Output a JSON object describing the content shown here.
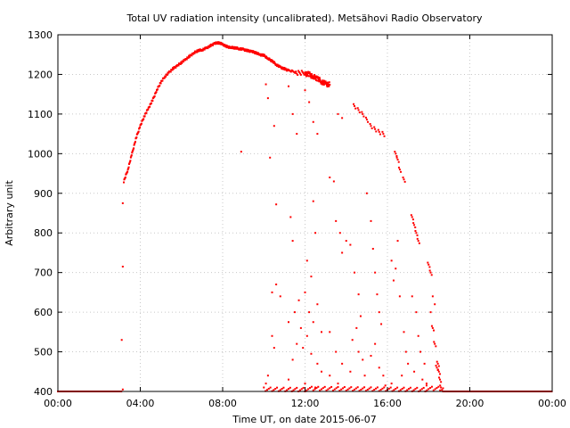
{
  "chart_data": {
    "type": "scatter",
    "title": "Total UV radiation intensity (uncalibrated). Metsähovi Radio Observatory",
    "xlabel": "Time UT, on date 2015-06-07",
    "ylabel": "Arbitrary unit",
    "xlim": [
      0,
      24
    ],
    "ylim": [
      400,
      1300
    ],
    "x_ticks": [
      {
        "value": 0,
        "label": "00:00"
      },
      {
        "value": 4,
        "label": "04:00"
      },
      {
        "value": 8,
        "label": "08:00"
      },
      {
        "value": 12,
        "label": "12:00"
      },
      {
        "value": 16,
        "label": "16:00"
      },
      {
        "value": 20,
        "label": "20:00"
      },
      {
        "value": 24,
        "label": "00:00"
      }
    ],
    "y_ticks": [
      400,
      500,
      600,
      700,
      800,
      900,
      1000,
      1100,
      1200,
      1300
    ],
    "grid": true,
    "series_color": "#ff0000",
    "series": [
      {
        "name": "",
        "main_curve": [
          [
            3.2,
            930
          ],
          [
            3.4,
            960
          ],
          [
            3.6,
            1000
          ],
          [
            3.8,
            1040
          ],
          [
            4.0,
            1070
          ],
          [
            4.2,
            1095
          ],
          [
            4.4,
            1115
          ],
          [
            4.6,
            1135
          ],
          [
            4.8,
            1160
          ],
          [
            5.0,
            1180
          ],
          [
            5.2,
            1195
          ],
          [
            5.4,
            1205
          ],
          [
            5.6,
            1215
          ],
          [
            5.8,
            1222
          ],
          [
            6.0,
            1230
          ],
          [
            6.2,
            1238
          ],
          [
            6.4,
            1246
          ],
          [
            6.6,
            1254
          ],
          [
            6.8,
            1260
          ],
          [
            7.0,
            1262
          ],
          [
            7.2,
            1266
          ],
          [
            7.4,
            1272
          ],
          [
            7.6,
            1278
          ],
          [
            7.8,
            1280
          ],
          [
            8.0,
            1276
          ],
          [
            8.2,
            1270
          ],
          [
            8.4,
            1268
          ],
          [
            8.6,
            1267
          ],
          [
            8.8,
            1265
          ],
          [
            9.0,
            1263
          ],
          [
            9.2,
            1260
          ],
          [
            9.4,
            1258
          ],
          [
            9.6,
            1255
          ],
          [
            9.8,
            1250
          ],
          [
            10.0,
            1248
          ],
          [
            10.2,
            1240
          ],
          [
            10.4,
            1234
          ],
          [
            10.6,
            1225
          ],
          [
            10.8,
            1218
          ],
          [
            11.0,
            1214
          ],
          [
            11.2,
            1210
          ],
          [
            11.6,
            1205
          ],
          [
            12.0,
            1202
          ],
          [
            12.2,
            1200
          ],
          [
            12.4,
            1194
          ],
          [
            12.6,
            1190
          ],
          [
            12.8,
            1182
          ],
          [
            13.0,
            1176
          ],
          [
            13.2,
            1174
          ]
        ],
        "late_clusters": [
          [
            14.4,
            1120
          ],
          [
            14.6,
            1110
          ],
          [
            14.8,
            1100
          ],
          [
            15.0,
            1086
          ],
          [
            15.2,
            1070
          ],
          [
            15.4,
            1062
          ],
          [
            15.6,
            1055
          ],
          [
            15.8,
            1050
          ],
          [
            16.4,
            1000
          ],
          [
            16.5,
            985
          ],
          [
            16.6,
            960
          ],
          [
            16.8,
            935
          ],
          [
            17.2,
            840
          ],
          [
            17.3,
            820
          ],
          [
            17.4,
            800
          ],
          [
            17.5,
            780
          ],
          [
            18.0,
            720
          ],
          [
            18.1,
            700
          ],
          [
            18.2,
            560
          ],
          [
            18.3,
            520
          ],
          [
            18.4,
            460
          ],
          [
            18.45,
            470
          ],
          [
            18.5,
            450
          ],
          [
            18.55,
            430
          ],
          [
            18.6,
            410
          ]
        ],
        "scatter": [
          [
            3.15,
            875
          ],
          [
            3.15,
            715
          ],
          [
            3.1,
            530
          ],
          [
            3.15,
            405
          ],
          [
            8.9,
            1005
          ],
          [
            10.1,
            1175
          ],
          [
            10.2,
            1140
          ],
          [
            10.3,
            990
          ],
          [
            10.5,
            1070
          ],
          [
            10.6,
            872
          ],
          [
            10.4,
            650
          ],
          [
            10.6,
            670
          ],
          [
            10.8,
            640
          ],
          [
            10.2,
            440
          ],
          [
            10.5,
            510
          ],
          [
            10.4,
            540
          ],
          [
            10.1,
            420
          ],
          [
            11.2,
            1170
          ],
          [
            11.4,
            1100
          ],
          [
            11.6,
            1050
          ],
          [
            11.3,
            840
          ],
          [
            11.4,
            780
          ],
          [
            11.2,
            575
          ],
          [
            11.5,
            600
          ],
          [
            11.7,
            630
          ],
          [
            11.6,
            520
          ],
          [
            11.4,
            480
          ],
          [
            11.8,
            560
          ],
          [
            11.9,
            510
          ],
          [
            11.2,
            430
          ],
          [
            12.0,
            1160
          ],
          [
            12.2,
            1130
          ],
          [
            12.4,
            1080
          ],
          [
            12.6,
            1050
          ],
          [
            12.4,
            880
          ],
          [
            12.5,
            800
          ],
          [
            12.1,
            730
          ],
          [
            12.3,
            690
          ],
          [
            12.0,
            650
          ],
          [
            12.6,
            620
          ],
          [
            12.2,
            600
          ],
          [
            12.4,
            575
          ],
          [
            12.8,
            550
          ],
          [
            12.1,
            540
          ],
          [
            12.3,
            495
          ],
          [
            12.6,
            470
          ],
          [
            12.8,
            450
          ],
          [
            12.0,
            420
          ],
          [
            12.5,
            410
          ],
          [
            13.2,
            940
          ],
          [
            13.4,
            930
          ],
          [
            13.6,
            1100
          ],
          [
            13.8,
            1090
          ],
          [
            13.5,
            830
          ],
          [
            13.7,
            800
          ],
          [
            13.8,
            750
          ],
          [
            14.0,
            780
          ],
          [
            13.2,
            550
          ],
          [
            13.5,
            500
          ],
          [
            13.8,
            470
          ],
          [
            13.2,
            440
          ],
          [
            13.6,
            420
          ],
          [
            14.2,
            770
          ],
          [
            14.4,
            700
          ],
          [
            14.6,
            645
          ],
          [
            14.7,
            590
          ],
          [
            14.5,
            560
          ],
          [
            14.3,
            530
          ],
          [
            14.6,
            500
          ],
          [
            14.8,
            480
          ],
          [
            14.2,
            450
          ],
          [
            14.9,
            440
          ],
          [
            15.0,
            900
          ],
          [
            15.2,
            830
          ],
          [
            15.3,
            760
          ],
          [
            15.4,
            700
          ],
          [
            15.5,
            645
          ],
          [
            15.6,
            600
          ],
          [
            15.7,
            570
          ],
          [
            15.4,
            520
          ],
          [
            15.2,
            490
          ],
          [
            15.6,
            460
          ],
          [
            15.8,
            440
          ],
          [
            15.9,
            415
          ],
          [
            16.2,
            730
          ],
          [
            16.4,
            710
          ],
          [
            16.5,
            780
          ],
          [
            16.3,
            680
          ],
          [
            16.6,
            640
          ],
          [
            16.8,
            550
          ],
          [
            16.9,
            500
          ],
          [
            17.0,
            470
          ],
          [
            16.7,
            440
          ],
          [
            16.2,
            420
          ],
          [
            17.2,
            640
          ],
          [
            17.4,
            600
          ],
          [
            17.5,
            540
          ],
          [
            17.6,
            500
          ],
          [
            17.8,
            470
          ],
          [
            17.3,
            450
          ],
          [
            17.7,
            430
          ],
          [
            17.9,
            415
          ],
          [
            18.2,
            640
          ],
          [
            18.3,
            620
          ],
          [
            18.1,
            600
          ],
          [
            17.9,
            420
          ],
          [
            18.7,
            408
          ]
        ]
      }
    ]
  }
}
